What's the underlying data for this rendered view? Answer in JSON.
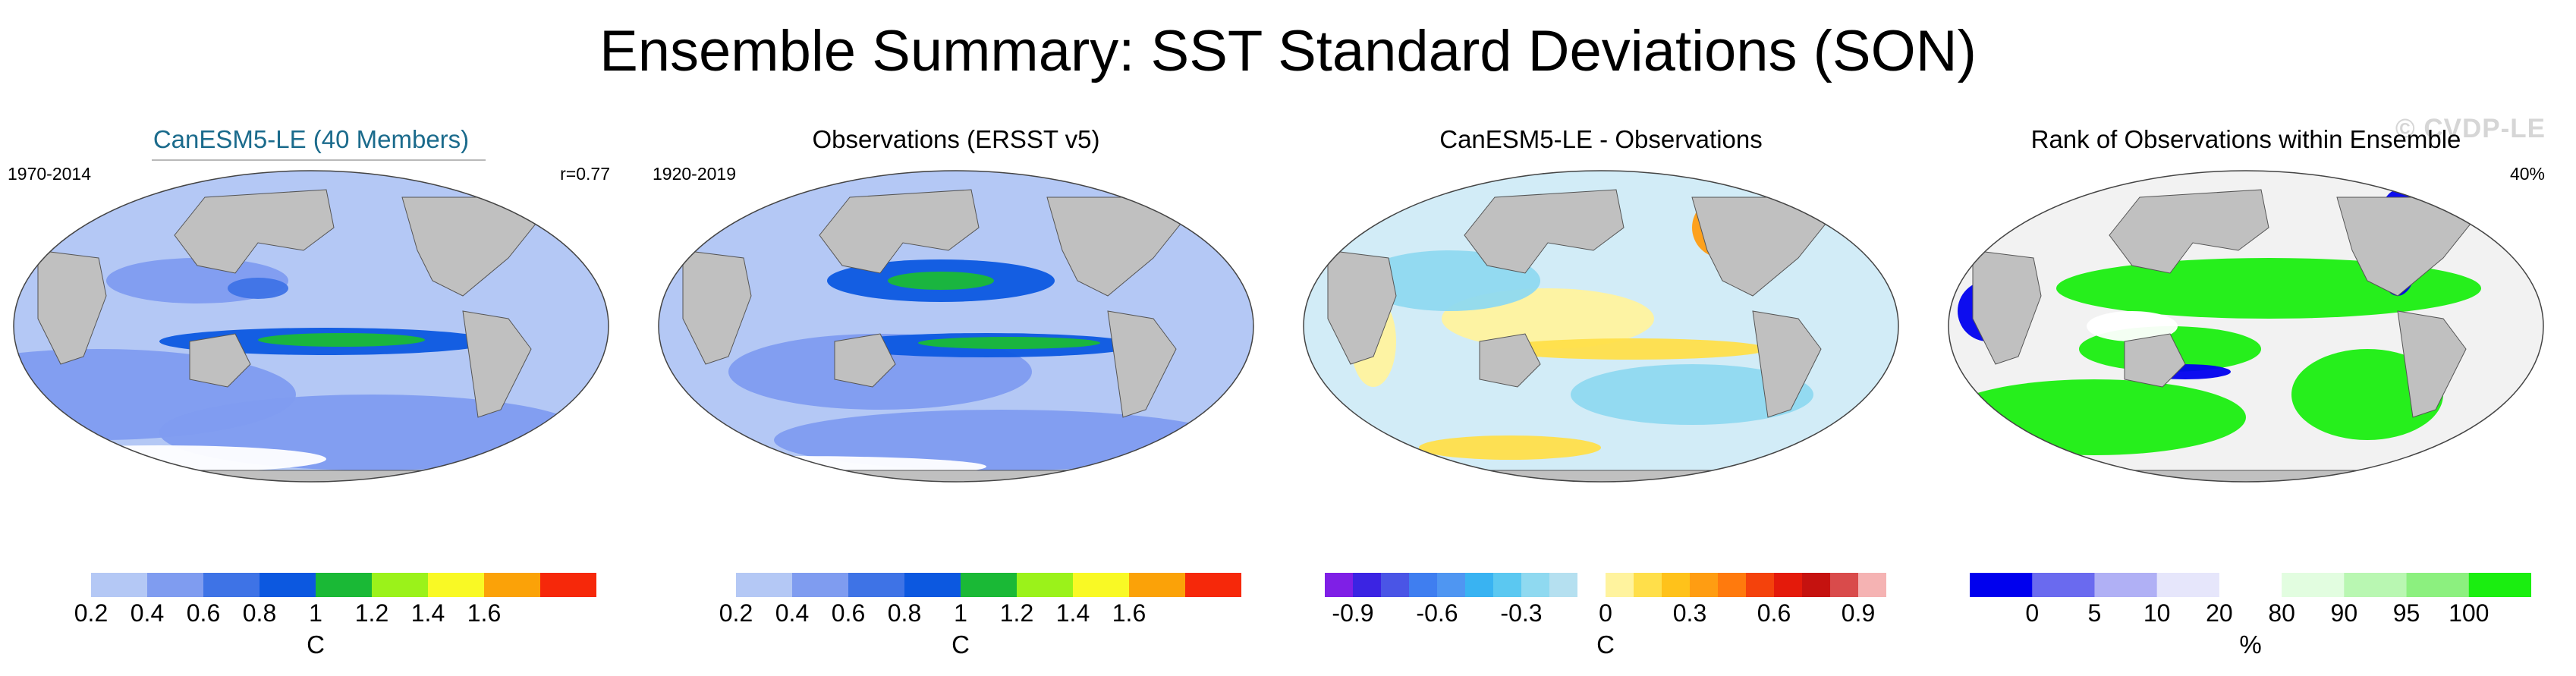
{
  "title": "Ensemble Summary: SST Standard Deviations (SON)",
  "watermark": "© CVDP-LE",
  "panels": [
    {
      "title": "CanESM5-LE (40 Members)",
      "left_label": "1970-2014",
      "right_label": "r=0.77",
      "unit": "C",
      "colorbar": {
        "colors": [
          "#ffffff",
          "#b4c8f5",
          "#7f9cf0",
          "#3e73e6",
          "#0c58e0",
          "#1ab936",
          "#9bf21a",
          "#f9f925",
          "#fba208",
          "#f6280a"
        ],
        "ticks": [
          "0.2",
          "0.4",
          "0.6",
          "0.8",
          "1",
          "1.2",
          "1.4",
          "1.6"
        ]
      }
    },
    {
      "title": "Observations (ERSST v5)",
      "left_label": "1920-2019",
      "right_label": "",
      "unit": "C",
      "colorbar": {
        "colors": [
          "#ffffff",
          "#b4c8f5",
          "#7f9cf0",
          "#3e73e6",
          "#0c58e0",
          "#1ab936",
          "#9bf21a",
          "#f9f925",
          "#fba208",
          "#f6280a"
        ],
        "ticks": [
          "0.2",
          "0.4",
          "0.6",
          "0.8",
          "1",
          "1.2",
          "1.4",
          "1.6"
        ]
      }
    },
    {
      "title": "CanESM5-LE - Observations",
      "left_label": "",
      "right_label": "",
      "unit": "C",
      "colorbar": {
        "colors": [
          "#7f1fe6",
          "#3b24e3",
          "#4a55e6",
          "#3f7ef0",
          "#4f96f2",
          "#39b3f2",
          "#5bc8f1",
          "#8fd9f0",
          "#b5e0f0",
          "#ffffff",
          "#fff39e",
          "#ffdf4a",
          "#ffc21a",
          "#ff9d12",
          "#ff7a0d",
          "#f4420c",
          "#e41a0b",
          "#c5120f",
          "#d94b4b",
          "#f5b3b3"
        ],
        "ticks": [
          "-0.9",
          "-0.6",
          "-0.3",
          "0",
          "0.3",
          "0.6",
          "0.9"
        ]
      }
    },
    {
      "title": "Rank of Observations within Ensemble",
      "left_label": "",
      "right_label": "40%",
      "unit": "%",
      "colorbar": {
        "colors": [
          "#0000ee",
          "#6a6aef",
          "#b0b0f5",
          "#e6e6fb",
          "#ffffff",
          "#e2fde0",
          "#b9f7b2",
          "#8cf07f",
          "#1aee10"
        ],
        "ticks": [
          "0",
          "5",
          "10",
          "20",
          "80",
          "90",
          "95",
          "100"
        ]
      }
    }
  ],
  "map_legend_meaning": {
    "panel_1_3_colorscale": "SST standard deviation"
  }
}
